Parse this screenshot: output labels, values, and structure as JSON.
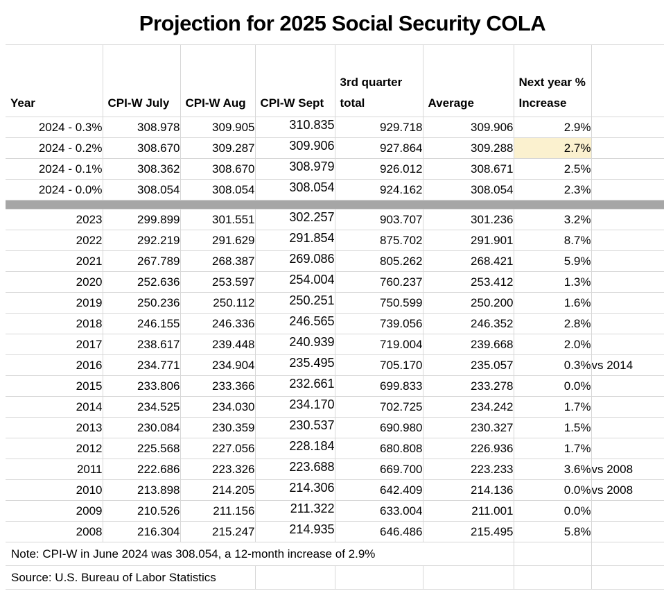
{
  "title": "Projection for 2025 Social Security COLA",
  "table": {
    "headers": [
      {
        "key": "year",
        "label": "Year"
      },
      {
        "key": "cpiw-july",
        "label": "CPI-W July"
      },
      {
        "key": "cpiw-aug",
        "label": "CPI-W Aug"
      },
      {
        "key": "cpiw-sept",
        "label": "CPI-W Sept"
      },
      {
        "key": "q3-total",
        "label": "3rd quarter total"
      },
      {
        "key": "average",
        "label": "Average"
      },
      {
        "key": "next-year-increase",
        "label": "Next year % Increase"
      },
      {
        "key": "comparison-note",
        "label": ""
      }
    ],
    "scenario_rows": [
      [
        "2024 - 0.3%",
        "308.978",
        "309.905",
        "310.835",
        "929.718",
        "309.906",
        "2.9%",
        ""
      ],
      [
        "2024 - 0.2%",
        "308.670",
        "309.287",
        "309.906",
        "927.864",
        "309.288",
        "2.7%",
        ""
      ],
      [
        "2024 - 0.1%",
        "308.362",
        "308.670",
        "308.979",
        "926.012",
        "308.671",
        "2.5%",
        ""
      ],
      [
        "2024 - 0.0%",
        "308.054",
        "308.054",
        "308.054",
        "924.162",
        "308.054",
        "2.3%",
        ""
      ]
    ],
    "highlight": {
      "section": "scenario_rows",
      "row": 1,
      "col": 6
    },
    "year_rows": [
      [
        "2023",
        "299.899",
        "301.551",
        "302.257",
        "903.707",
        "301.236",
        "3.2%",
        ""
      ],
      [
        "2022",
        "292.219",
        "291.629",
        "291.854",
        "875.702",
        "291.901",
        "8.7%",
        ""
      ],
      [
        "2021",
        "267.789",
        "268.387",
        "269.086",
        "805.262",
        "268.421",
        "5.9%",
        ""
      ],
      [
        "2020",
        "252.636",
        "253.597",
        "254.004",
        "760.237",
        "253.412",
        "1.3%",
        ""
      ],
      [
        "2019",
        "250.236",
        "250.112",
        "250.251",
        "750.599",
        "250.200",
        "1.6%",
        ""
      ],
      [
        "2018",
        "246.155",
        "246.336",
        "246.565",
        "739.056",
        "246.352",
        "2.8%",
        ""
      ],
      [
        "2017",
        "238.617",
        "239.448",
        "240.939",
        "719.004",
        "239.668",
        "2.0%",
        ""
      ],
      [
        "2016",
        "234.771",
        "234.904",
        "235.495",
        "705.170",
        "235.057",
        "0.3%",
        "vs 2014"
      ],
      [
        "2015",
        "233.806",
        "233.366",
        "232.661",
        "699.833",
        "233.278",
        "0.0%",
        ""
      ],
      [
        "2014",
        "234.525",
        "234.030",
        "234.170",
        "702.725",
        "234.242",
        "1.7%",
        ""
      ],
      [
        "2013",
        "230.084",
        "230.359",
        "230.537",
        "690.980",
        "230.327",
        "1.5%",
        ""
      ],
      [
        "2012",
        "225.568",
        "227.056",
        "228.184",
        "680.808",
        "226.936",
        "1.7%",
        ""
      ],
      [
        "2011",
        "222.686",
        "223.326",
        "223.688",
        "669.700",
        "223.233",
        "3.6%",
        "vs 2008"
      ],
      [
        "2010",
        "213.898",
        "214.205",
        "214.306",
        "642.409",
        "214.136",
        "0.0%",
        "vs 2008"
      ],
      [
        "2009",
        "210.526",
        "211.156",
        "211.322",
        "633.004",
        "211.001",
        "0.0%",
        ""
      ],
      [
        "2008",
        "216.304",
        "215.247",
        "214.935",
        "646.486",
        "215.495",
        "5.8%",
        ""
      ]
    ],
    "note": "Note: CPI-W in June 2024 was 308.054, a 12-month increase of 2.9%",
    "source": "Source: U.S. Bureau of Labor Statistics"
  },
  "colors": {
    "highlight_cell": "#fbf1cf",
    "divider_bar": "#a6a6a6",
    "gridline": "#d7d7d7"
  }
}
